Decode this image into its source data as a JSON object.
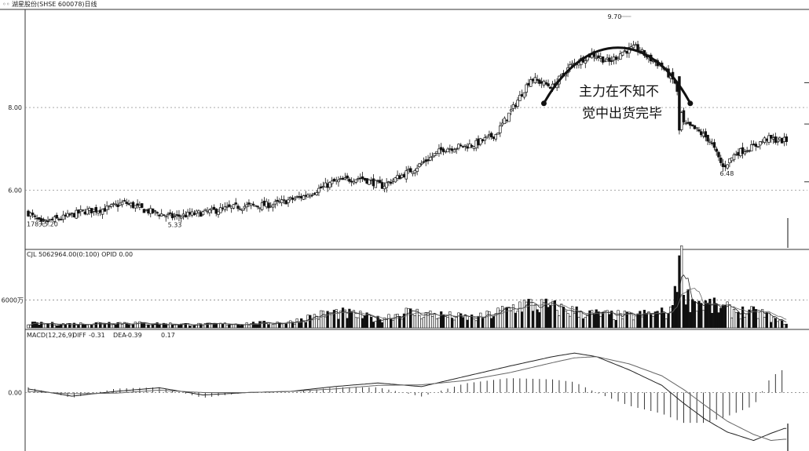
{
  "header": {
    "icon": "chart-window-icon",
    "title": "湖星股份(SHSE 600078)日线"
  },
  "chart_data": [
    {
      "type": "candlestick",
      "yticks": [
        "8.00",
        "6.00"
      ],
      "ylim": [
        4.6,
        10.3
      ],
      "labels": {
        "days": "178天",
        "low_start": "5.20",
        "low_mid": "5.33",
        "high": "9.70",
        "low_end": "6.48"
      },
      "annotation": [
        "主力在不知不",
        "觉中出货完毕"
      ],
      "close_points": [
        {
          "i": 0,
          "c": 5.45
        },
        {
          "i": 6,
          "c": 5.18
        },
        {
          "i": 10,
          "c": 5.26
        },
        {
          "i": 16,
          "c": 5.33
        },
        {
          "i": 25,
          "c": 5.48
        },
        {
          "i": 36,
          "c": 5.55
        },
        {
          "i": 44,
          "c": 5.7
        },
        {
          "i": 54,
          "c": 5.5
        },
        {
          "i": 66,
          "c": 5.35
        },
        {
          "i": 80,
          "c": 5.45
        },
        {
          "i": 96,
          "c": 5.6
        },
        {
          "i": 112,
          "c": 5.65
        },
        {
          "i": 126,
          "c": 5.85
        },
        {
          "i": 140,
          "c": 6.2
        },
        {
          "i": 152,
          "c": 6.3
        },
        {
          "i": 162,
          "c": 6.1
        },
        {
          "i": 176,
          "c": 6.5
        },
        {
          "i": 190,
          "c": 7.0
        },
        {
          "i": 204,
          "c": 7.1
        },
        {
          "i": 214,
          "c": 7.35
        },
        {
          "i": 222,
          "c": 8.0
        },
        {
          "i": 230,
          "c": 8.7
        },
        {
          "i": 240,
          "c": 8.5
        },
        {
          "i": 248,
          "c": 9.0
        },
        {
          "i": 258,
          "c": 9.3
        },
        {
          "i": 266,
          "c": 9.1
        },
        {
          "i": 272,
          "c": 9.35
        },
        {
          "i": 278,
          "c": 9.45
        },
        {
          "i": 284,
          "c": 9.2
        },
        {
          "i": 290,
          "c": 9.0
        },
        {
          "i": 296,
          "c": 8.6
        },
        {
          "i": 300,
          "c": 7.6
        },
        {
          "i": 306,
          "c": 7.45
        },
        {
          "i": 312,
          "c": 7.2
        },
        {
          "i": 318,
          "c": 6.55
        },
        {
          "i": 324,
          "c": 6.9
        },
        {
          "i": 332,
          "c": 7.05
        },
        {
          "i": 338,
          "c": 7.25
        },
        {
          "i": 344,
          "c": 7.2
        }
      ]
    },
    {
      "type": "bar",
      "header": "CJL  5062964.00(0:100)   OPID  0.00",
      "ytick": "6000万",
      "unit": "万",
      "ylim": [
        0,
        16000
      ],
      "volume_points": [
        {
          "i": 0,
          "v": 900
        },
        {
          "i": 20,
          "v": 800
        },
        {
          "i": 40,
          "v": 1100
        },
        {
          "i": 60,
          "v": 850
        },
        {
          "i": 80,
          "v": 700
        },
        {
          "i": 100,
          "v": 900
        },
        {
          "i": 120,
          "v": 1200
        },
        {
          "i": 130,
          "v": 2400
        },
        {
          "i": 140,
          "v": 3200
        },
        {
          "i": 150,
          "v": 2700
        },
        {
          "i": 160,
          "v": 1800
        },
        {
          "i": 172,
          "v": 3300
        },
        {
          "i": 184,
          "v": 2900
        },
        {
          "i": 196,
          "v": 2300
        },
        {
          "i": 206,
          "v": 2100
        },
        {
          "i": 216,
          "v": 3400
        },
        {
          "i": 226,
          "v": 5000
        },
        {
          "i": 236,
          "v": 4600
        },
        {
          "i": 246,
          "v": 3800
        },
        {
          "i": 256,
          "v": 3000
        },
        {
          "i": 266,
          "v": 2700
        },
        {
          "i": 276,
          "v": 2500
        },
        {
          "i": 286,
          "v": 3000
        },
        {
          "i": 294,
          "v": 3200
        },
        {
          "i": 298,
          "v": 15500
        },
        {
          "i": 302,
          "v": 6200
        },
        {
          "i": 308,
          "v": 5200
        },
        {
          "i": 316,
          "v": 4200
        },
        {
          "i": 326,
          "v": 3400
        },
        {
          "i": 336,
          "v": 3000
        },
        {
          "i": 344,
          "v": 1200
        }
      ]
    },
    {
      "type": "macd",
      "header_label": "MACD(12,26,9)",
      "diff_label": "DIFF",
      "diff_value": "-0.31",
      "dea_label": "DEA",
      "dea_value": "-0.39",
      "macd_value": "0.17",
      "ytick": "0.00",
      "ylim": [
        -0.95,
        0.95
      ],
      "diff_points": [
        {
          "i": 0,
          "v": 0.06
        },
        {
          "i": 20,
          "v": -0.06
        },
        {
          "i": 40,
          "v": 0.02
        },
        {
          "i": 60,
          "v": 0.08
        },
        {
          "i": 80,
          "v": -0.04
        },
        {
          "i": 100,
          "v": 0.0
        },
        {
          "i": 120,
          "v": 0.02
        },
        {
          "i": 140,
          "v": 0.1
        },
        {
          "i": 160,
          "v": 0.16
        },
        {
          "i": 180,
          "v": 0.1
        },
        {
          "i": 200,
          "v": 0.27
        },
        {
          "i": 220,
          "v": 0.44
        },
        {
          "i": 240,
          "v": 0.6
        },
        {
          "i": 250,
          "v": 0.66
        },
        {
          "i": 260,
          "v": 0.6
        },
        {
          "i": 275,
          "v": 0.38
        },
        {
          "i": 290,
          "v": 0.12
        },
        {
          "i": 300,
          "v": -0.18
        },
        {
          "i": 310,
          "v": -0.45
        },
        {
          "i": 320,
          "v": -0.66
        },
        {
          "i": 332,
          "v": -0.8
        },
        {
          "i": 340,
          "v": -0.68
        },
        {
          "i": 346,
          "v": -0.6
        }
      ],
      "dea_points": [
        {
          "i": 0,
          "v": 0.02
        },
        {
          "i": 20,
          "v": -0.02
        },
        {
          "i": 40,
          "v": -0.01
        },
        {
          "i": 60,
          "v": 0.04
        },
        {
          "i": 80,
          "v": 0.0
        },
        {
          "i": 100,
          "v": 0.0
        },
        {
          "i": 120,
          "v": 0.02
        },
        {
          "i": 140,
          "v": 0.06
        },
        {
          "i": 160,
          "v": 0.12
        },
        {
          "i": 180,
          "v": 0.13
        },
        {
          "i": 200,
          "v": 0.2
        },
        {
          "i": 220,
          "v": 0.33
        },
        {
          "i": 240,
          "v": 0.5
        },
        {
          "i": 250,
          "v": 0.58
        },
        {
          "i": 260,
          "v": 0.6
        },
        {
          "i": 275,
          "v": 0.48
        },
        {
          "i": 290,
          "v": 0.28
        },
        {
          "i": 300,
          "v": 0.05
        },
        {
          "i": 310,
          "v": -0.22
        },
        {
          "i": 320,
          "v": -0.48
        },
        {
          "i": 332,
          "v": -0.7
        },
        {
          "i": 340,
          "v": -0.8
        },
        {
          "i": 346,
          "v": -0.78
        }
      ]
    }
  ]
}
